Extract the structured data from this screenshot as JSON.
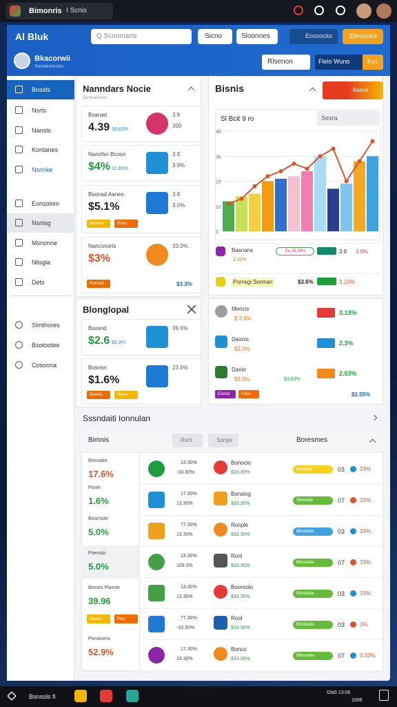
{
  "topbar": {
    "app": "Bimonris",
    "tab": "I Scnis"
  },
  "header": {
    "logo": "Al Bluk",
    "search": "Q Scnomarts",
    "search_button": "Sicno",
    "dropdown": "Sloonnes",
    "button_a": "Eosoocks",
    "button_b": "Elmooons",
    "user_name": "Bkacorwii",
    "user_sub": "Sonwinosoon",
    "select": "Rlsenon",
    "action": "Flelo Wuno",
    "badge": "Eon"
  },
  "sidebar": {
    "items": [
      "Bnsids",
      "Nsrts",
      "Nansts",
      "Kontanes",
      "Nsnnke",
      "Eonsolom",
      "Nsnisg",
      "Msnonne",
      "Nlisgla",
      "Dets"
    ],
    "groups": [
      "Slmthores",
      "Bsotootee",
      "Cosonna"
    ]
  },
  "panel_a": {
    "title": "Nanndars Nocie",
    "subtitle": "Eonmanoces",
    "cards": [
      {
        "label": "Bsanad",
        "value": "4.39",
        "note": "33.63%",
        "side": [
          "3.9",
          "300"
        ]
      },
      {
        "label": "Nanofsn Bcoon",
        "value": "$4%",
        "note": "31.65%",
        "side": [
          "3.9",
          "3.9%"
        ]
      },
      {
        "label": "Bsonad Aanes",
        "value": "$5.1%",
        "side": [
          "3.9",
          "3.0%"
        ],
        "chips": [
          "Basone",
          "Rans"
        ]
      },
      {
        "label": "Nanconoris",
        "value": "$3%",
        "side": [
          "33.0%"
        ],
        "chips": [
          "Rorsbol"
        ],
        "footer": "$3.3%"
      }
    ]
  },
  "panel_b": {
    "title": "Blonglopal",
    "cards": [
      {
        "label": "Bsosnd",
        "value": "$2.6",
        "note": "$5.3%",
        "side": [
          "39.6%"
        ]
      },
      {
        "label": "Bosnsn",
        "value": "$1.6%",
        "side": [
          "23.6%"
        ],
        "chips": [
          "Bonsrs",
          "Pinos"
        ]
      }
    ]
  },
  "chart_data": {
    "type": "bar",
    "title": "Bisnis",
    "subtitle": "Sl Bcit 9 ro",
    "select": "Sesra",
    "categories": [
      null,
      null,
      null,
      null,
      null,
      null,
      null,
      null,
      null,
      null,
      null,
      null
    ],
    "values": [
      12,
      14,
      15,
      20,
      21,
      22,
      24,
      30,
      17,
      19,
      28,
      30
    ],
    "colors": [
      "#4caf50",
      "#c6e05a",
      "#f4d03f",
      "#f39c12",
      "#2e6fd1",
      "#f5c0d0",
      "#ee7fb0",
      "#a8dcf5",
      "#2a3f8f",
      "#7fc4ec",
      "#f5a623",
      "#3fa3e0"
    ],
    "line": {
      "color": "#e0522c",
      "values": [
        11,
        13,
        18,
        22,
        24,
        27,
        25,
        30,
        33,
        20,
        28,
        36
      ]
    },
    "ylim": [
      0,
      40
    ],
    "yticks": [
      0,
      10,
      20,
      30,
      40
    ],
    "grid": true
  },
  "chart_card": {
    "button": "Bsnos",
    "rows": [
      {
        "name": "Basnans",
        "sub": "3.33%",
        "pill": "Eo 35.59%",
        "value": "3.9",
        "pct": "3.9%"
      },
      {
        "name": "Pornsgi Sorman",
        "sub": "",
        "pill": "$3.6%",
        "value": "",
        "pct": "3.10%"
      }
    ]
  },
  "side_card": {
    "rows": [
      {
        "name": "Mencis",
        "sub": "$ 3.6%",
        "pct": "3.13%"
      },
      {
        "name": "Daonis",
        "sub": "$3.0%",
        "pct": "2.3%"
      },
      {
        "name": "Darier",
        "sub": "$3.0%",
        "pct": "2.53%",
        "extra": "$3.63%"
      }
    ],
    "chips": [
      "Eonsd",
      "Fans"
    ],
    "footer": "$2.55%"
  },
  "table": {
    "title": "Sssndaiti Ionnulan",
    "header": "Bimnis",
    "filters": [
      "Rsnt",
      "Sonpe"
    ],
    "column": "Boresmes",
    "stats": [
      {
        "label": "Bonsatio",
        "value": "17.6%"
      },
      {
        "label": "Poste",
        "value": "1.6%"
      },
      {
        "label": "Bosmsite",
        "value": "5.0%"
      },
      {
        "label": "Poensio",
        "value": "5.0%"
      },
      {
        "label": "Bonsin Plassie",
        "value": "39.96"
      },
      {
        "label": "Ponsicens",
        "value": "52.9%"
      }
    ],
    "chips": [
      "Bonsrs",
      "Pins"
    ],
    "rows": [
      {
        "a": "13.30%",
        "b": "-33.30%",
        "name": "Bonocio",
        "sub": "$33.30%",
        "pill": "Bnsbelle",
        "n": "03",
        "pct": "33%"
      },
      {
        "a": "17.30%",
        "b": "13.30%",
        "name": "Bonsing",
        "sub": "$33.30%",
        "pill": "Sllnstelle",
        "n": "07",
        "pct": "33%"
      },
      {
        "a": "77.30%",
        "b": "13.30%",
        "name": "Ronple",
        "sub": "$33.30%",
        "pill": "Bllnsbelle",
        "n": "03",
        "pct": "33%"
      },
      {
        "a": "13.30%",
        "b": "109.3%",
        "name": "Ronl",
        "sub": "$33.30%",
        "pill": "Bllnsbelle",
        "n": "07",
        "pct": "33%"
      },
      {
        "a": "13.30%",
        "b": "13.30%",
        "name": "Booreolo",
        "sub": "$33.30%",
        "pill": "Bllnsbelle",
        "n": "03",
        "pct": "33%"
      },
      {
        "a": "77.30%",
        "b": "-33.30%",
        "name": "Rool",
        "sub": "$33.30%",
        "pill": "Bllnsbelle",
        "n": "03",
        "pct": "3%"
      },
      {
        "a": "17.30%",
        "b": "33.30%",
        "name": "Bonco",
        "sub": "$33.30%",
        "pill": "Bllnsbelle",
        "n": "07",
        "pct": "0.33%"
      }
    ]
  },
  "taskbar": {
    "app": "Bsnsols fi",
    "clock": "Gla5 13:06",
    "date": "1006"
  }
}
